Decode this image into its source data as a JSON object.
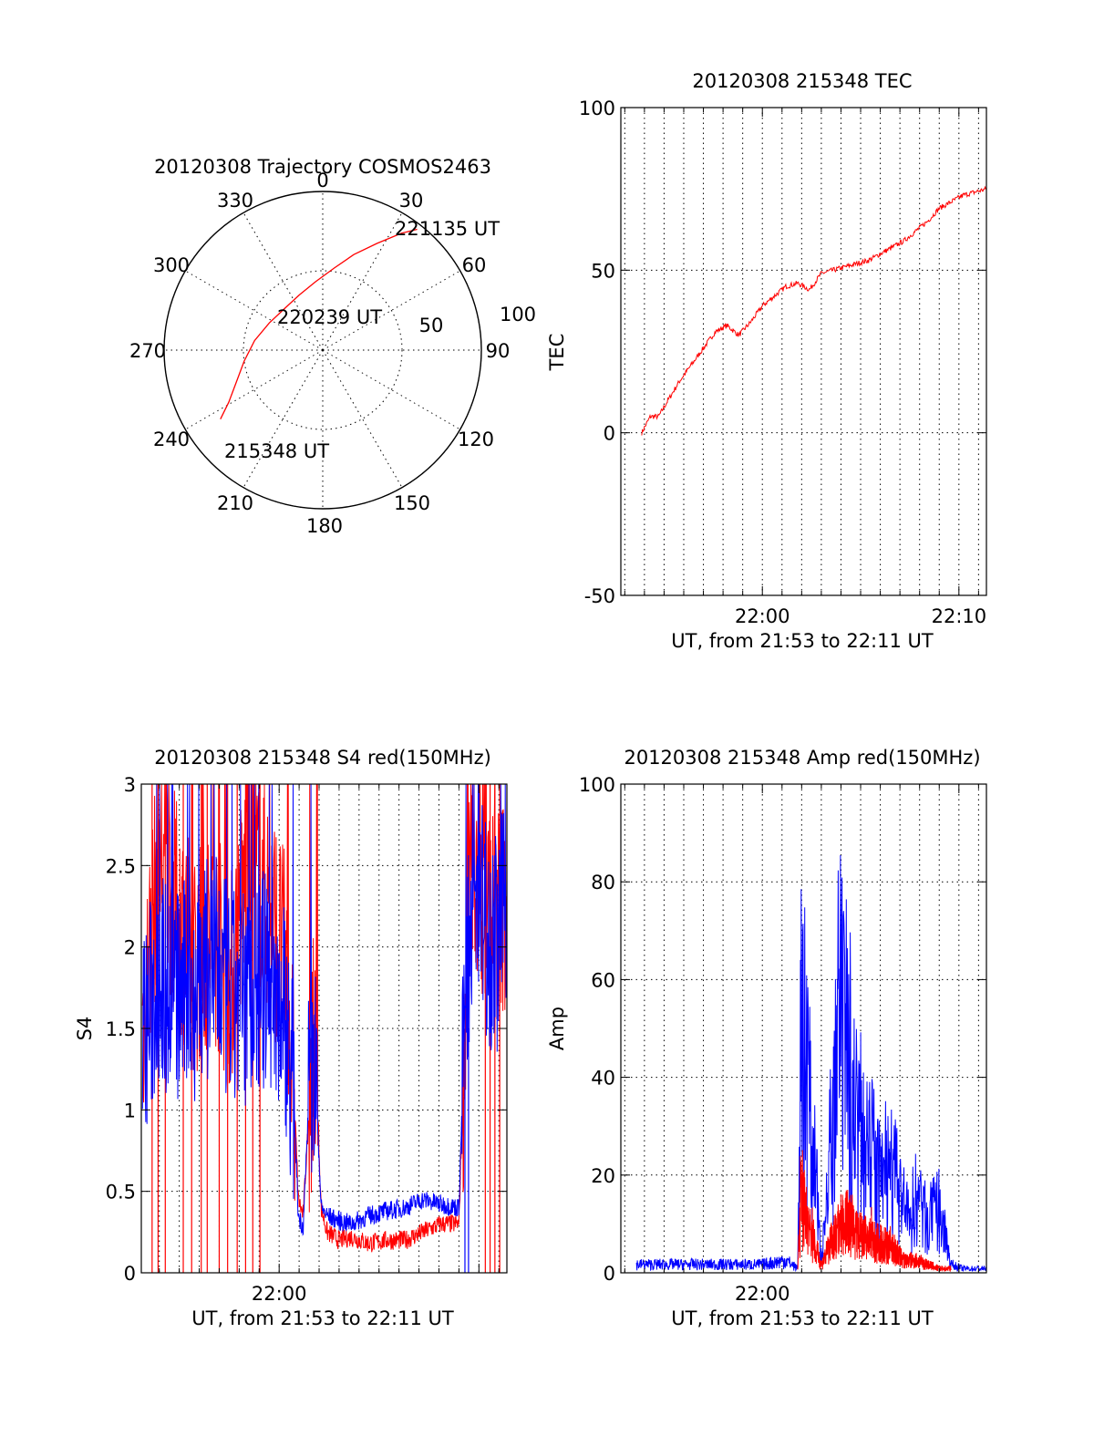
{
  "colors": {
    "red": "#ff0000",
    "blue": "#0000ff"
  },
  "chart_data": [
    {
      "id": "trajectory",
      "type": "polar",
      "title": "20120308 Trajectory COSMOS2463",
      "azimuth_labels": [
        "0",
        "30",
        "60",
        "90",
        "120",
        "150",
        "180",
        "210",
        "240",
        "270",
        "300",
        "330"
      ],
      "ring_labels": [
        "50",
        "100"
      ],
      "elevation_rings": [
        30,
        60,
        90
      ],
      "series": [
        {
          "name": "track",
          "color": "#ff0000",
          "points": [
            {
              "az": 236,
              "el": 20
            },
            {
              "az": 241,
              "el": 29
            },
            {
              "az": 250,
              "el": 38
            },
            {
              "az": 262,
              "el": 45
            },
            {
              "az": 278,
              "el": 51
            },
            {
              "az": 297,
              "el": 56
            },
            {
              "az": 318,
              "el": 58
            },
            {
              "az": 337,
              "el": 56
            },
            {
              "az": 354,
              "el": 51
            },
            {
              "az": 8,
              "el": 43
            },
            {
              "az": 18,
              "el": 33
            },
            {
              "az": 27,
              "el": 22
            },
            {
              "az": 34,
              "el": 10
            },
            {
              "az": 38,
              "el": 3
            }
          ]
        }
      ],
      "annotations": [
        {
          "text": "221135 UT",
          "az": 38,
          "el": 3
        },
        {
          "text": "220239 UT",
          "az": 330,
          "el": 58
        },
        {
          "text": "215348 UT",
          "az": 236,
          "el": 20
        }
      ]
    },
    {
      "id": "tec",
      "type": "line",
      "title": "20120308 215348 TEC",
      "xlabel": "UT, from 21:53 to 22:11 UT",
      "ylabel": "TEC",
      "xlim": [
        21.88,
        22.19
      ],
      "ylim": [
        -50,
        100
      ],
      "yticks": [
        "100",
        "50",
        "0",
        "-50"
      ],
      "ytick_values": [
        100,
        50,
        0,
        -50
      ],
      "xticks": [
        "22:00",
        "22:10"
      ],
      "xtick_values": [
        22.0,
        22.1667
      ],
      "series": [
        {
          "name": "TEC",
          "color": "#ff0000",
          "x": [
            21.8977,
            21.905,
            21.912,
            21.92,
            21.93,
            21.94,
            21.95,
            21.96,
            21.97,
            21.98,
            21.99,
            22.0,
            22.01,
            22.02,
            22.03,
            22.04,
            22.05,
            22.06,
            22.07,
            22.08,
            22.09,
            22.1,
            22.11,
            22.12,
            22.13,
            22.14,
            22.15,
            22.16,
            22.17,
            22.18,
            22.19
          ],
          "y": [
            0,
            5,
            5,
            10,
            16,
            21,
            26,
            31,
            33,
            30,
            34,
            39,
            42,
            45,
            46,
            44,
            49,
            50,
            51,
            52,
            53,
            55,
            57,
            59,
            62,
            65,
            69,
            71,
            73,
            74,
            75
          ]
        }
      ]
    },
    {
      "id": "s4",
      "type": "line",
      "title": "20120308 215348 S4 red(150MHz)",
      "xlabel": "UT, from 21:53 to 22:11 UT",
      "ylabel": "S4",
      "xlim": [
        21.885,
        22.19
      ],
      "ylim": [
        0,
        3
      ],
      "yticks": [
        "3",
        "2.5",
        "2",
        "1.5",
        "1",
        "0.5",
        "0"
      ],
      "ytick_values": [
        3,
        2.5,
        2,
        1.5,
        1,
        0.5,
        0
      ],
      "xticks": [
        "22:00"
      ],
      "xtick_values": [
        22.0
      ],
      "series": [
        {
          "name": "S4 red",
          "color": "#ff0000",
          "x": [
            21.886,
            21.9,
            21.915,
            21.93,
            21.945,
            21.96,
            21.975,
            21.99,
            22.005,
            22.012,
            22.016,
            22.02,
            22.025,
            22.03,
            22.035,
            22.04,
            22.05,
            22.06,
            22.075,
            22.09,
            22.105,
            22.12,
            22.135,
            22.15,
            22.155,
            22.16,
            22.17,
            22.18,
            22.19
          ],
          "y": [
            1.5,
            2.6,
            2.2,
            1.9,
            2.1,
            1.8,
            2.6,
            2.3,
            1.9,
            1.2,
            0.45,
            0.35,
            1.0,
            1.5,
            0.4,
            0.25,
            0.2,
            0.22,
            0.18,
            0.2,
            0.2,
            0.25,
            0.3,
            0.3,
            1.5,
            2.5,
            2.4,
            2.2,
            2.3
          ]
        },
        {
          "name": "S4 blue",
          "color": "#0000ff",
          "x": [
            21.886,
            21.9,
            21.915,
            21.93,
            21.945,
            21.96,
            21.975,
            21.99,
            22.005,
            22.012,
            22.016,
            22.02,
            22.025,
            22.03,
            22.035,
            22.04,
            22.05,
            22.06,
            22.075,
            22.09,
            22.105,
            22.12,
            22.135,
            22.15,
            22.155,
            22.16,
            22.17,
            22.18,
            22.19
          ],
          "y": [
            1.45,
            1.8,
            1.7,
            1.75,
            1.9,
            1.65,
            1.7,
            1.8,
            1.6,
            1.1,
            0.35,
            0.28,
            1.1,
            1.3,
            0.4,
            0.35,
            0.32,
            0.3,
            0.35,
            0.38,
            0.4,
            0.45,
            0.42,
            0.4,
            1.6,
            2.3,
            2.2,
            2.0,
            2.2
          ]
        }
      ]
    },
    {
      "id": "amp",
      "type": "line",
      "title": "20120308 215348 Amp red(150MHz)",
      "xlabel": "UT, from 21:53 to 22:11 UT",
      "ylabel": "Amp",
      "xlim": [
        21.88,
        22.19
      ],
      "ylim": [
        0,
        100
      ],
      "yticks": [
        "100",
        "80",
        "60",
        "40",
        "20",
        "0"
      ],
      "ytick_values": [
        100,
        80,
        60,
        40,
        20,
        0
      ],
      "xticks": [
        "22:00"
      ],
      "xtick_values": [
        22.0
      ],
      "series": [
        {
          "name": "Amp blue",
          "color": "#0000ff",
          "x": [
            21.893,
            21.93,
            21.97,
            22.0,
            22.02,
            22.03,
            22.033,
            22.04,
            22.05,
            22.06,
            22.065,
            22.07,
            22.08,
            22.09,
            22.1,
            22.11,
            22.12,
            22.125,
            22.13,
            22.14,
            22.15,
            22.16,
            22.17,
            22.19
          ],
          "y": [
            2,
            2,
            2,
            2,
            3,
            1,
            65,
            40,
            5,
            30,
            62,
            50,
            35,
            32,
            20,
            25,
            15,
            12,
            18,
            12,
            15,
            2,
            1,
            1
          ]
        },
        {
          "name": "Amp red",
          "color": "#ff0000",
          "x": [
            22.03,
            22.033,
            22.04,
            22.05,
            22.06,
            22.07,
            22.08,
            22.09,
            22.1,
            22.11,
            22.12,
            22.13,
            22.14,
            22.15,
            22.16
          ],
          "y": [
            1,
            18,
            10,
            2,
            8,
            13,
            9,
            8,
            7,
            6,
            3,
            3,
            2,
            1,
            1
          ]
        }
      ]
    }
  ]
}
